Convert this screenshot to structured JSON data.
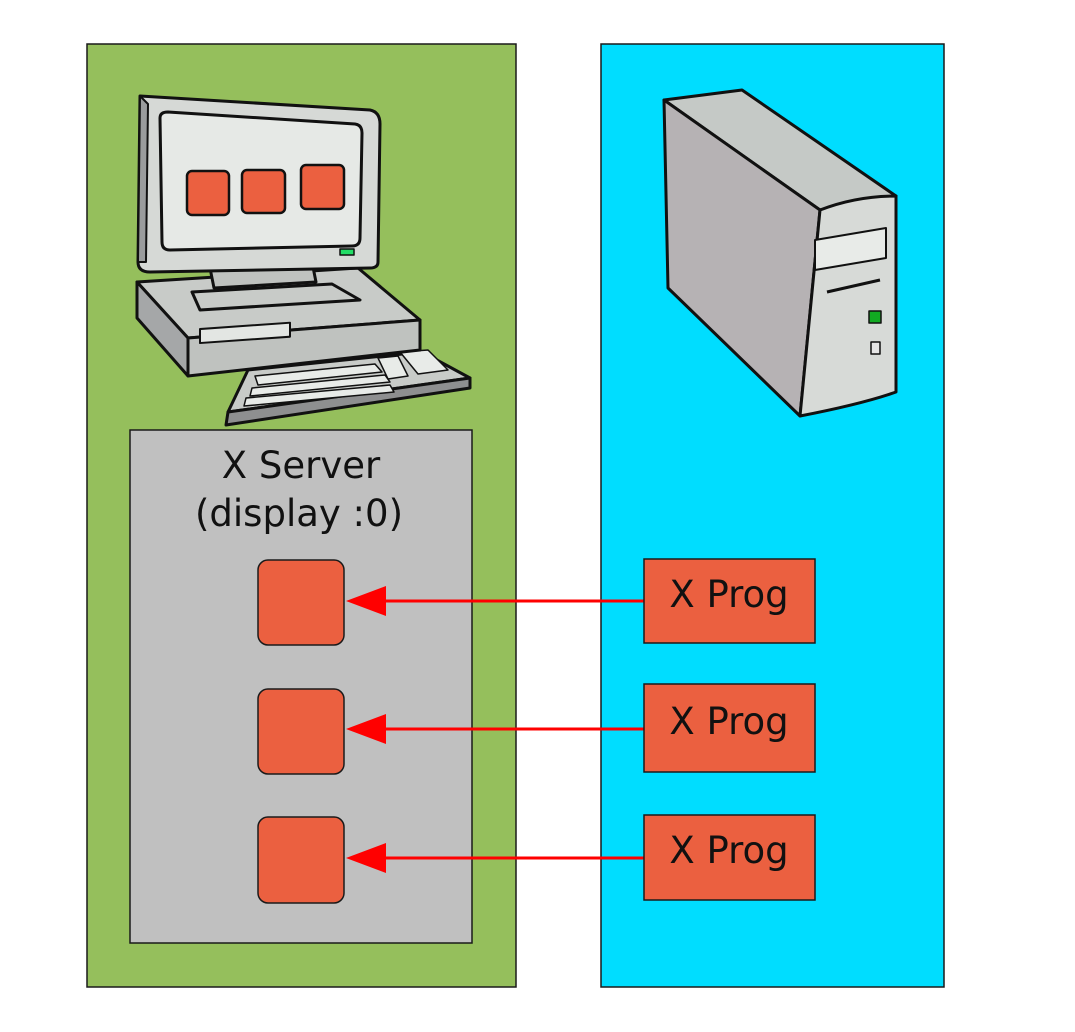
{
  "diagram": {
    "server_title": "X Server",
    "server_subtitle": "(display :0)",
    "programs": [
      {
        "label": "X Prog"
      },
      {
        "label": "X Prog"
      },
      {
        "label": "X Prog"
      }
    ]
  },
  "colors": {
    "client_panel": "#95bf5c",
    "remote_panel": "#00ddff",
    "server_box": "#c0c0c0",
    "window_fill": "#eb6040",
    "arrow": "#ff0000",
    "outline": "#1a1a1a"
  }
}
